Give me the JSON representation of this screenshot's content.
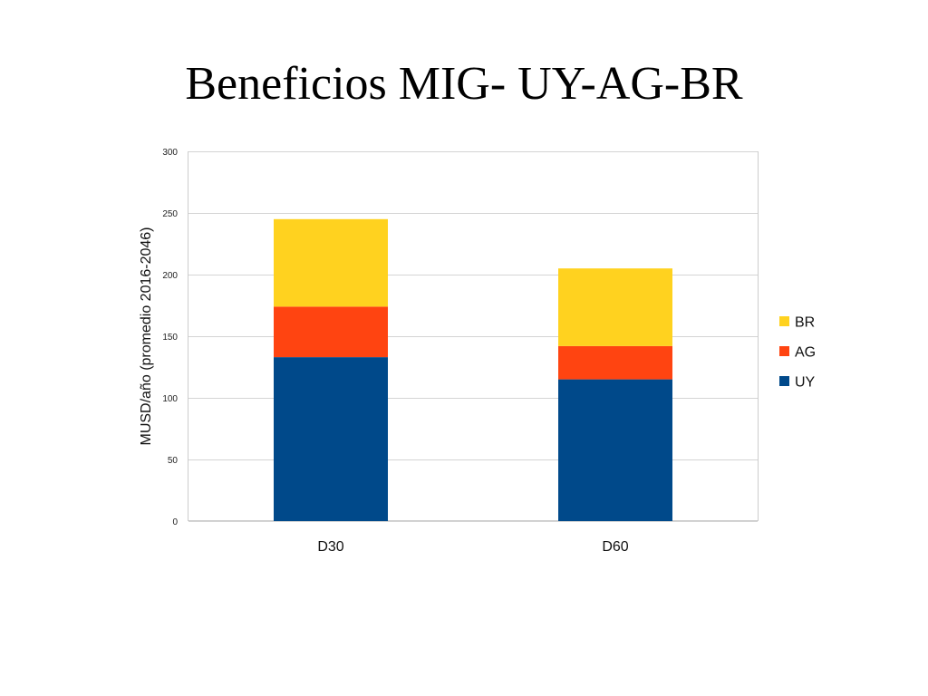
{
  "title": "Beneficios MIG- UY-AG-BR",
  "chart_data": {
    "type": "bar",
    "stacked": true,
    "categories": [
      "D30",
      "D60"
    ],
    "series": [
      {
        "name": "UY",
        "values": [
          133,
          115
        ],
        "color": "#00498A"
      },
      {
        "name": "AG",
        "values": [
          41,
          27
        ],
        "color": "#FF4411"
      },
      {
        "name": "BR",
        "values": [
          71,
          63
        ],
        "color": "#FFD21F"
      }
    ],
    "ylabel": "MUSD/año (promedio 2016-2046)",
    "xlabel": "",
    "ylim": [
      0,
      300
    ],
    "yticks": [
      0,
      50,
      100,
      150,
      200,
      250,
      300
    ],
    "grid": true,
    "legend": "right",
    "legend_order": [
      "BR",
      "AG",
      "UY"
    ]
  }
}
